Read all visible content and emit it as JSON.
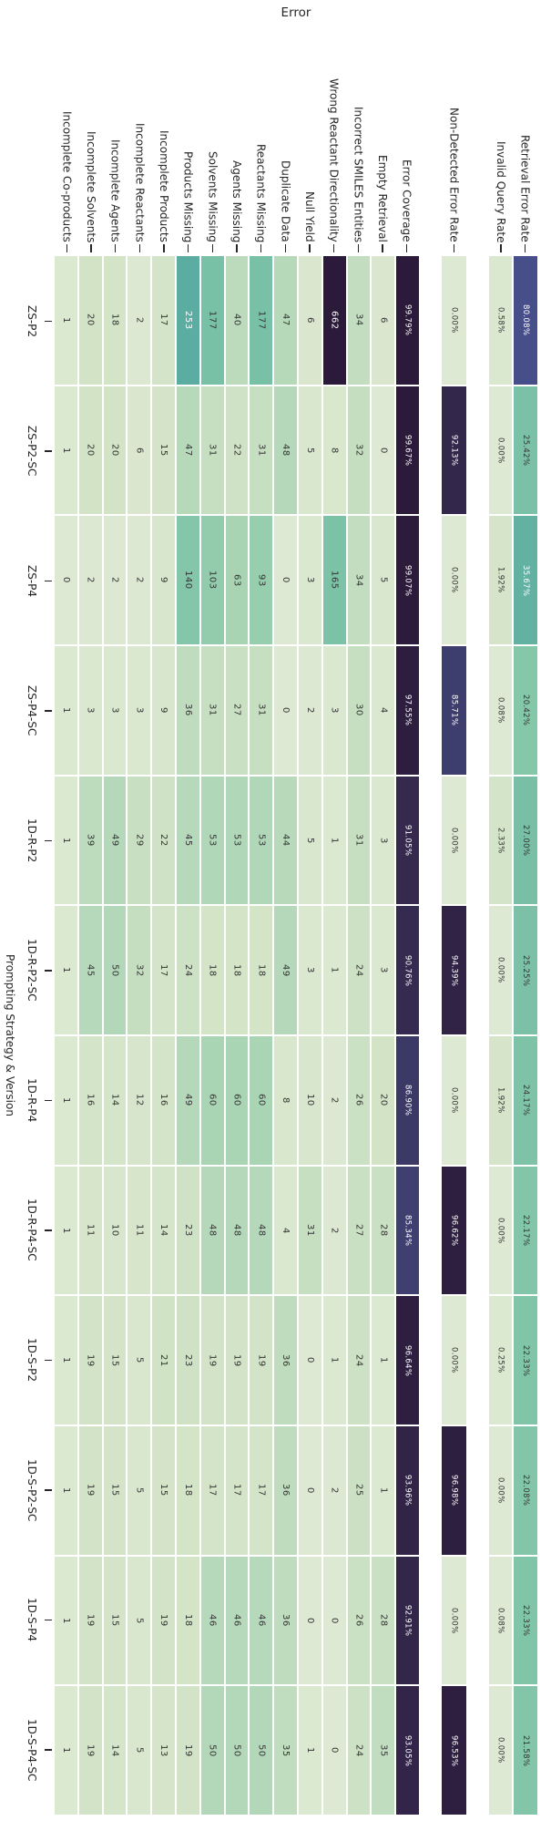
{
  "chart_data": {
    "type": "heatmap",
    "title": "Error",
    "ylabel": "Prompting Strategy & Version",
    "columns": [
      "Incomplete Co-products",
      "Incomplete Solvents",
      "Incomplete Agents",
      "Incomplete Reactants",
      "Incomplete Products",
      "Products Missing",
      "Solvents Missing",
      "Agents Missing",
      "Reactants Missing",
      "Duplicate Data",
      "Null Yield",
      "Wrong Reactant Directionality",
      "Incorrect SMILES Entities",
      "Empty Retrieval",
      "Error Coverage",
      "Non-Detected Error Rate",
      "Invalid Query Rate",
      "Retrieval Error Rate"
    ],
    "rows": [
      "ZS-P2",
      "ZS-P2-SC",
      "ZS-P4",
      "ZS-P4-SC",
      "1D-R-P2",
      "1D-R-P2-SC",
      "1D-R-P4",
      "1D-R-P4-SC",
      "1D-S-P2",
      "1D-S-P2-SC",
      "1D-S-P4",
      "1D-S-P4-SC"
    ],
    "values": [
      [
        1,
        20,
        18,
        2,
        17,
        253,
        177,
        40,
        177,
        47,
        6,
        662,
        34,
        6,
        "99.79%",
        "0.00%",
        "0.58%",
        "80.08%"
      ],
      [
        1,
        20,
        20,
        6,
        15,
        47,
        31,
        22,
        31,
        48,
        5,
        8,
        32,
        0,
        "99.67%",
        "92.13%",
        "0.00%",
        "25.42%"
      ],
      [
        0,
        2,
        2,
        2,
        9,
        140,
        103,
        63,
        93,
        0,
        3,
        165,
        34,
        5,
        "99.07%",
        "0.00%",
        "1.92%",
        "35.67%"
      ],
      [
        1,
        3,
        3,
        3,
        9,
        36,
        31,
        27,
        31,
        0,
        2,
        3,
        30,
        4,
        "97.55%",
        "85.71%",
        "0.08%",
        "20.42%"
      ],
      [
        1,
        39,
        49,
        29,
        22,
        45,
        53,
        53,
        53,
        44,
        5,
        1,
        31,
        3,
        "91.05%",
        "0.00%",
        "2.33%",
        "27.00%"
      ],
      [
        1,
        45,
        50,
        32,
        17,
        24,
        18,
        18,
        18,
        49,
        3,
        1,
        24,
        3,
        "90.76%",
        "94.39%",
        "0.00%",
        "25.25%"
      ],
      [
        1,
        16,
        14,
        12,
        16,
        49,
        60,
        60,
        60,
        8,
        10,
        2,
        26,
        20,
        "86.90%",
        "0.00%",
        "1.92%",
        "24.17%"
      ],
      [
        1,
        11,
        10,
        11,
        14,
        23,
        48,
        48,
        48,
        4,
        31,
        2,
        27,
        28,
        "85.34%",
        "96.62%",
        "0.00%",
        "22.17%"
      ],
      [
        1,
        19,
        15,
        5,
        21,
        23,
        19,
        19,
        19,
        36,
        0,
        1,
        24,
        1,
        "96.64%",
        "0.00%",
        "0.25%",
        "22.33%"
      ],
      [
        1,
        19,
        15,
        5,
        15,
        18,
        17,
        17,
        17,
        36,
        0,
        2,
        25,
        1,
        "93.96%",
        "96.98%",
        "0.00%",
        "22.08%"
      ],
      [
        1,
        19,
        15,
        5,
        19,
        18,
        46,
        46,
        46,
        36,
        0,
        0,
        26,
        28,
        "92.91%",
        "0.00%",
        "0.08%",
        "22.33%"
      ],
      [
        1,
        19,
        14,
        5,
        13,
        19,
        50,
        50,
        50,
        35,
        1,
        0,
        24,
        35,
        "93.05%",
        "96.53%",
        "0.00%",
        "21.58%"
      ]
    ],
    "column_groups": [
      {
        "name": "error-counts-and-coverage",
        "col_start": 0,
        "col_end": 14
      },
      {
        "name": "non-detected-error-rate",
        "col_start": 15,
        "col_end": 15
      },
      {
        "name": "query-and-retrieval-rates",
        "col_start": 16,
        "col_end": 17
      }
    ],
    "normalization": {
      "count_vmax": 662,
      "percent_vmax": 100
    },
    "legend": "none",
    "grid": "white cell separators",
    "colors": {
      "colormap_stops": [
        [
          0.0,
          "#dde9d2"
        ],
        [
          0.03,
          "#d2e3c6"
        ],
        [
          0.06,
          "#bcdbbd"
        ],
        [
          0.1,
          "#a5d3b3"
        ],
        [
          0.15,
          "#93cdad"
        ],
        [
          0.21,
          "#84c6a9"
        ],
        [
          0.265,
          "#79c0a6"
        ],
        [
          0.33,
          "#68b6a2"
        ],
        [
          0.4,
          "#57a9a0"
        ],
        [
          0.5,
          "#4b929f"
        ],
        [
          0.6,
          "#48789b"
        ],
        [
          0.7,
          "#486095"
        ],
        [
          0.8,
          "#474f8a"
        ],
        [
          0.86,
          "#3e3d6d"
        ],
        [
          0.91,
          "#35294e"
        ],
        [
          0.96,
          "#2e2042"
        ],
        [
          1.0,
          "#2b1a39"
        ]
      ],
      "annotation_dark_text": "#333333",
      "annotation_light_text": "#ffffff",
      "axis_text": "#262626",
      "background": "#ffffff",
      "white_text_threshold": 0.34
    }
  }
}
